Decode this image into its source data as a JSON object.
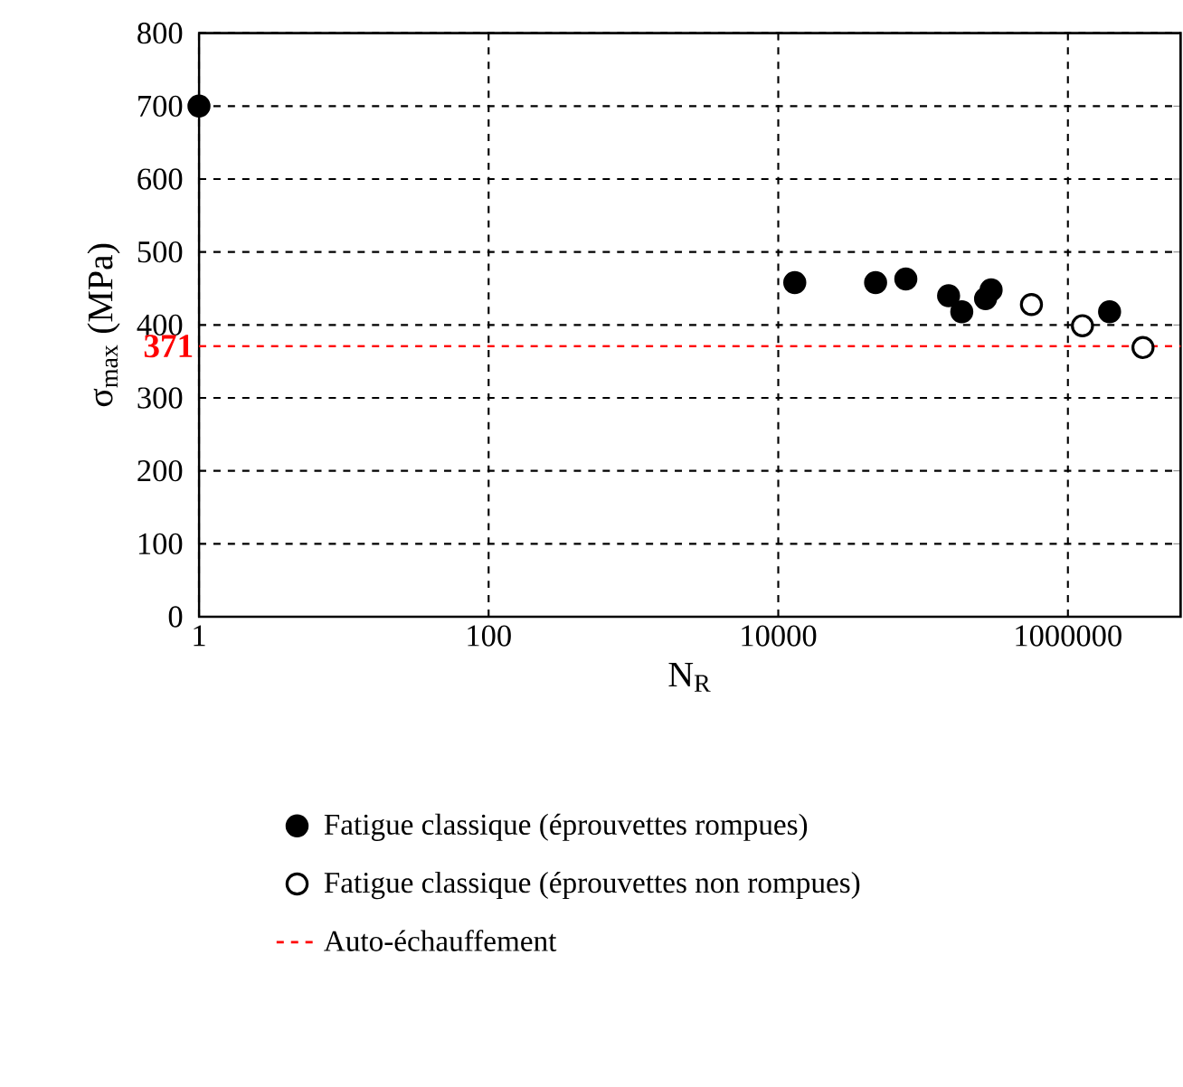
{
  "chart_data": {
    "type": "scatter",
    "xlabel": "N$_{R}$",
    "ylabel": "σ$_{max}$ (MPa)",
    "log": "x",
    "xlim": [
      1,
      6000000
    ],
    "xticks": [
      1,
      100,
      10000,
      1000000
    ],
    "ylim": [
      0,
      800
    ],
    "yticks": [
      0,
      100,
      200,
      300,
      400,
      500,
      600,
      700,
      800
    ],
    "grid": true,
    "legend": "bottom",
    "marker": "circle",
    "series": [
      {
        "name": "Fatigue classique (éprouvettes rompues)",
        "color": "#000000",
        "x": [
          1,
          13000,
          47000,
          76000,
          150000,
          185000,
          270000,
          295000,
          1940000
        ],
        "values": [
          700,
          458,
          458,
          463,
          440,
          418,
          436,
          448,
          418
        ]
      },
      {
        "name": "Fatigue classique (éprouvettes non rompues)",
        "color": "#ffffff",
        "x": [
          560000,
          1260000,
          3300000
        ],
        "values": [
          428,
          399,
          369
        ]
      }
    ],
    "ref_lines": [
      {
        "axis": "y",
        "value": 371,
        "label": "Auto-échauffement",
        "color": "#ff0000",
        "line_style": "dashed"
      }
    ],
    "annotations": [
      {
        "text": "371",
        "x": 1,
        "y": 371
      }
    ]
  }
}
